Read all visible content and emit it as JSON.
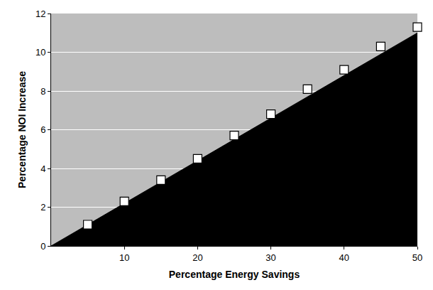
{
  "chart_data": {
    "type": "scatter",
    "x_label": "Percentage Energy Savings",
    "y_label": "Percentage NOI Increase",
    "series": [
      {
        "type": "area",
        "color": "#000000",
        "x": [
          0,
          50
        ],
        "values": [
          0,
          11
        ]
      },
      {
        "type": "scatter",
        "marker": "square",
        "color": "#ffffff",
        "x": [
          5,
          10,
          15,
          20,
          25,
          30,
          35,
          40,
          45,
          50
        ],
        "values": [
          1.1,
          2.3,
          3.4,
          4.5,
          5.7,
          6.8,
          8.1,
          9.1,
          10.3,
          11.3
        ]
      }
    ],
    "xlim": [
      0,
      50
    ],
    "xticks": [
      10,
      20,
      30,
      40,
      50
    ],
    "ylim": [
      0,
      12
    ],
    "yticks": [
      0,
      2,
      4,
      6,
      8,
      10,
      12
    ],
    "grid": true
  }
}
